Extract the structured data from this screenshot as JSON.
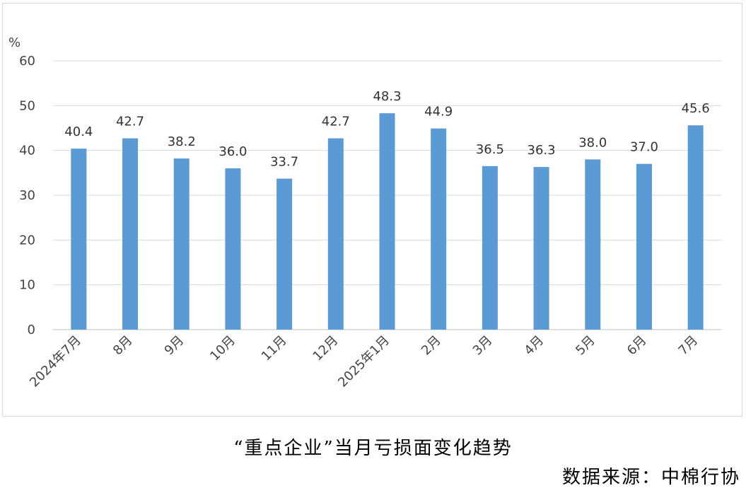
{
  "chart_data": {
    "type": "bar",
    "ylabel": "%",
    "ylim": [
      0,
      60
    ],
    "yticks": [
      0,
      10,
      20,
      30,
      40,
      50,
      60
    ],
    "categories": [
      "2024年7月",
      "8月",
      "9月",
      "10月",
      "11月",
      "12月",
      "2025年1月",
      "2月",
      "3月",
      "4月",
      "5月",
      "6月",
      "7月"
    ],
    "values": [
      40.4,
      42.7,
      38.2,
      36.0,
      33.7,
      42.7,
      48.3,
      44.9,
      36.5,
      36.3,
      38.0,
      37.0,
      45.6
    ],
    "value_labels": [
      "40.4",
      "42.7",
      "38.2",
      "36.0",
      "33.7",
      "42.7",
      "48.3",
      "44.9",
      "36.5",
      "36.3",
      "38.0",
      "37.0",
      "45.6"
    ],
    "bar_color": "#5b9bd5",
    "grid": true,
    "legend": "none"
  },
  "caption": "“重点企业”当月亏损面变化趋势",
  "source": "数据来源：中棉行协"
}
